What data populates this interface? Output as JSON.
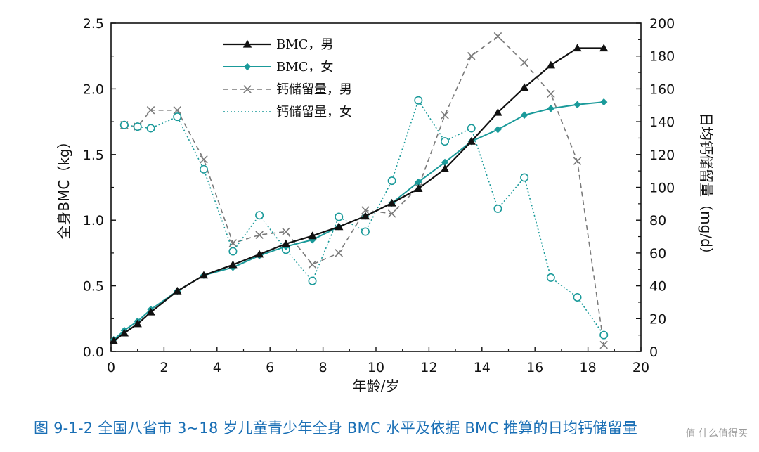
{
  "caption": "图 9-1-2   全国八省市 3~18 岁儿童青少年全身 BMC 水平及依据 BMC 推算的日均钙储留量",
  "watermark": "值 什么值得买",
  "colors": {
    "bmc_male": "#111111",
    "bmc_female": "#1a9a9a",
    "calcium_male": "#7a7a7a",
    "calcium_female": "#1a9a9a",
    "caption": "#1a6fb5"
  },
  "chart_data": {
    "type": "line",
    "xlabel": "年龄/岁",
    "ylabel": "全身BMC（kg）",
    "y2label": "日均钙储留量（mg/d）",
    "xlim": [
      0,
      20
    ],
    "ylim": [
      0,
      2.5
    ],
    "y2lim": [
      0,
      200
    ],
    "x_ticks": [
      0,
      2,
      4,
      6,
      8,
      10,
      12,
      14,
      16,
      18,
      20
    ],
    "y_ticks": [
      "0.0",
      "0.5",
      "1.0",
      "1.5",
      "2.0",
      "2.5"
    ],
    "y2_ticks": [
      "0",
      "20",
      "40",
      "60",
      "80",
      "100",
      "120",
      "140",
      "160",
      "180",
      "200"
    ],
    "grid": false,
    "legend_position": "top-left",
    "series": [
      {
        "name": "BMC，男",
        "axis": "left",
        "marker": "triangle",
        "style": "solid",
        "x": [
          0.1,
          0.5,
          1.0,
          1.5,
          2.5,
          3.5,
          4.6,
          5.6,
          6.6,
          7.6,
          8.6,
          9.6,
          10.6,
          11.6,
          12.6,
          13.6,
          14.6,
          15.6,
          16.6,
          17.6,
          18.6
        ],
        "values": [
          0.08,
          0.14,
          0.21,
          0.3,
          0.46,
          0.58,
          0.66,
          0.74,
          0.82,
          0.88,
          0.95,
          1.03,
          1.13,
          1.24,
          1.39,
          1.6,
          1.82,
          2.01,
          2.18,
          2.31,
          2.31
        ]
      },
      {
        "name": "BMC，女",
        "axis": "left",
        "marker": "diamond",
        "style": "solid",
        "x": [
          0.1,
          0.5,
          1.0,
          1.5,
          2.5,
          3.5,
          4.6,
          5.6,
          6.6,
          7.6,
          8.6,
          9.6,
          10.6,
          11.6,
          12.6,
          13.6,
          14.6,
          15.6,
          16.6,
          17.6,
          18.6
        ],
        "values": [
          0.09,
          0.16,
          0.23,
          0.32,
          0.46,
          0.58,
          0.64,
          0.73,
          0.8,
          0.85,
          0.95,
          1.03,
          1.13,
          1.29,
          1.44,
          1.6,
          1.69,
          1.8,
          1.85,
          1.88,
          1.9
        ]
      },
      {
        "name": "钙储留量，男",
        "axis": "right",
        "marker": "x",
        "style": "dashed",
        "x": [
          0.5,
          1.0,
          1.5,
          2.5,
          3.5,
          4.6,
          5.6,
          6.6,
          7.6,
          8.6,
          9.6,
          10.6,
          11.6,
          12.6,
          13.6,
          14.6,
          15.6,
          16.6,
          17.6,
          18.6
        ],
        "values": [
          138,
          137,
          147,
          147,
          117,
          66,
          71,
          73,
          53,
          60,
          86,
          84,
          100,
          144,
          180,
          192,
          176,
          157,
          116,
          4
        ]
      },
      {
        "name": "钙储留量，女",
        "axis": "right",
        "marker": "circle",
        "style": "dotted",
        "x": [
          0.5,
          1.0,
          1.5,
          2.5,
          3.5,
          4.6,
          5.6,
          6.6,
          7.6,
          8.6,
          9.6,
          10.6,
          11.6,
          12.6,
          13.6,
          14.6,
          15.6,
          16.6,
          17.6,
          18.6
        ],
        "values": [
          138,
          137,
          136,
          143,
          111,
          61,
          83,
          62,
          43,
          82,
          73,
          104,
          153,
          128,
          136,
          87,
          106,
          45,
          33,
          10
        ]
      }
    ]
  }
}
